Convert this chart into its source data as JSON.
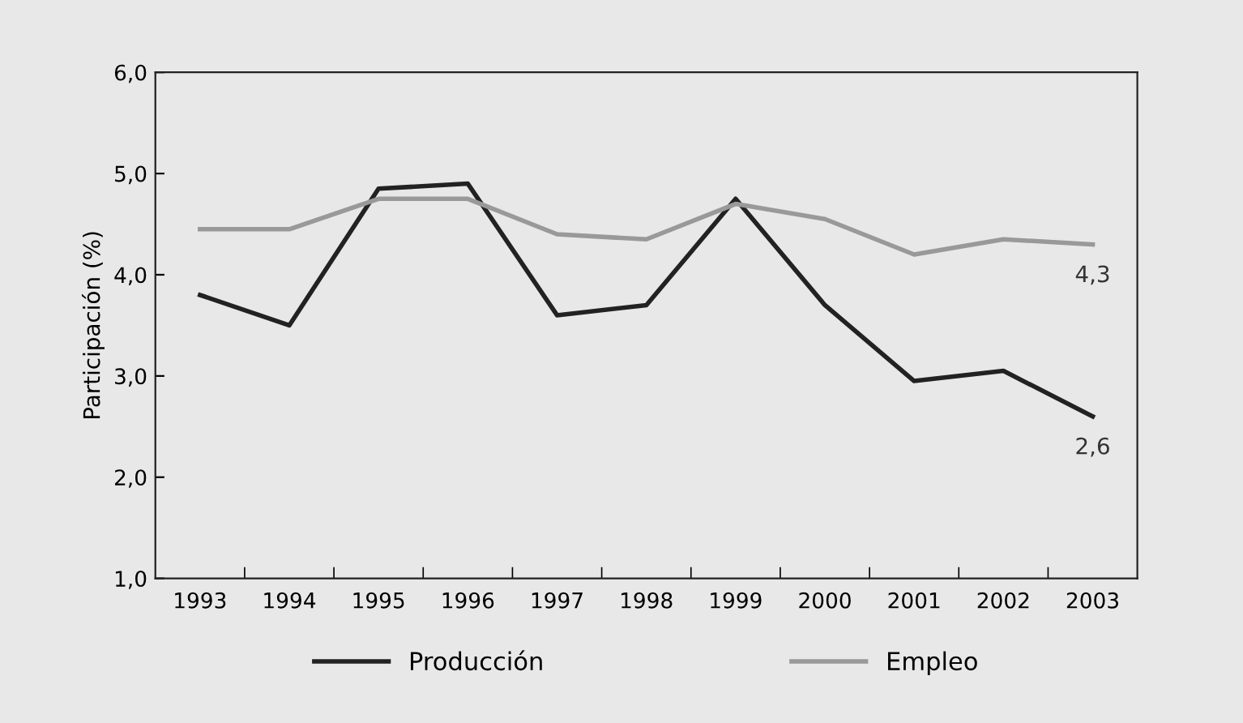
{
  "chart_data": {
    "type": "line",
    "ylabel": "Participación (%)",
    "categories": [
      "1993",
      "1994",
      "1995",
      "1996",
      "1997",
      "1998",
      "1999",
      "2000",
      "2001",
      "2002",
      "2003"
    ],
    "series": [
      {
        "name": "Producción",
        "color": "#222222",
        "values": [
          3.8,
          3.5,
          4.85,
          4.9,
          3.6,
          3.7,
          4.75,
          3.7,
          2.95,
          3.05,
          2.6
        ],
        "value_labels": [
          null,
          null,
          null,
          null,
          null,
          null,
          null,
          null,
          null,
          null,
          "2,6"
        ]
      },
      {
        "name": "Empleo",
        "color": "#999999",
        "values": [
          4.45,
          4.45,
          4.75,
          4.75,
          4.4,
          4.35,
          4.7,
          4.55,
          4.2,
          4.35,
          4.3
        ],
        "value_labels": [
          null,
          null,
          null,
          null,
          null,
          null,
          null,
          null,
          null,
          null,
          "4,3"
        ]
      }
    ],
    "ylim": [
      1,
      6
    ],
    "yticks": [
      {
        "value": 1,
        "label": "1,0"
      },
      {
        "value": 2,
        "label": "2,0"
      },
      {
        "value": 3,
        "label": "3,0"
      },
      {
        "value": 4,
        "label": "4,0"
      },
      {
        "value": 5,
        "label": "5,0"
      },
      {
        "value": 6,
        "label": "6,0"
      }
    ],
    "grid": false,
    "legend": "bottom",
    "marker": "none",
    "line_style": "solid"
  }
}
